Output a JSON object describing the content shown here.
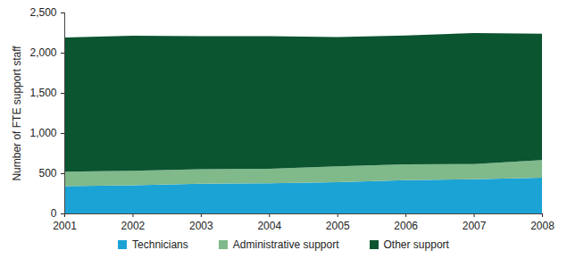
{
  "chart_data": {
    "type": "area",
    "stacked": true,
    "y_label": "Number of FTE support staff",
    "x": [
      2001,
      2002,
      2003,
      2004,
      2005,
      2006,
      2007,
      2008
    ],
    "series": [
      {
        "name": "Technicians",
        "color": "#1ba3d6",
        "values": [
          340,
          350,
          370,
          375,
          390,
          415,
          425,
          445
        ]
      },
      {
        "name": "Administrative support",
        "color": "#80b98a",
        "values": [
          180,
          180,
          180,
          180,
          195,
          195,
          190,
          220
        ]
      },
      {
        "name": "Other support",
        "color": "#0b5531",
        "values": [
          1670,
          1680,
          1655,
          1650,
          1610,
          1605,
          1630,
          1570
        ]
      }
    ],
    "xlim": [
      2001,
      2008
    ],
    "xticks": [
      2001,
      2002,
      2003,
      2004,
      2005,
      2006,
      2007,
      2008
    ],
    "ylim": [
      0,
      2500
    ],
    "yticks": [
      0,
      500,
      {
        "value": 1000,
        "label": "1,000"
      },
      {
        "value": 1500,
        "label": "1,500"
      },
      {
        "value": 2000,
        "label": "2,000"
      },
      {
        "value": 2500,
        "label": "2,500"
      }
    ],
    "grid": false,
    "legend": "bottom"
  }
}
